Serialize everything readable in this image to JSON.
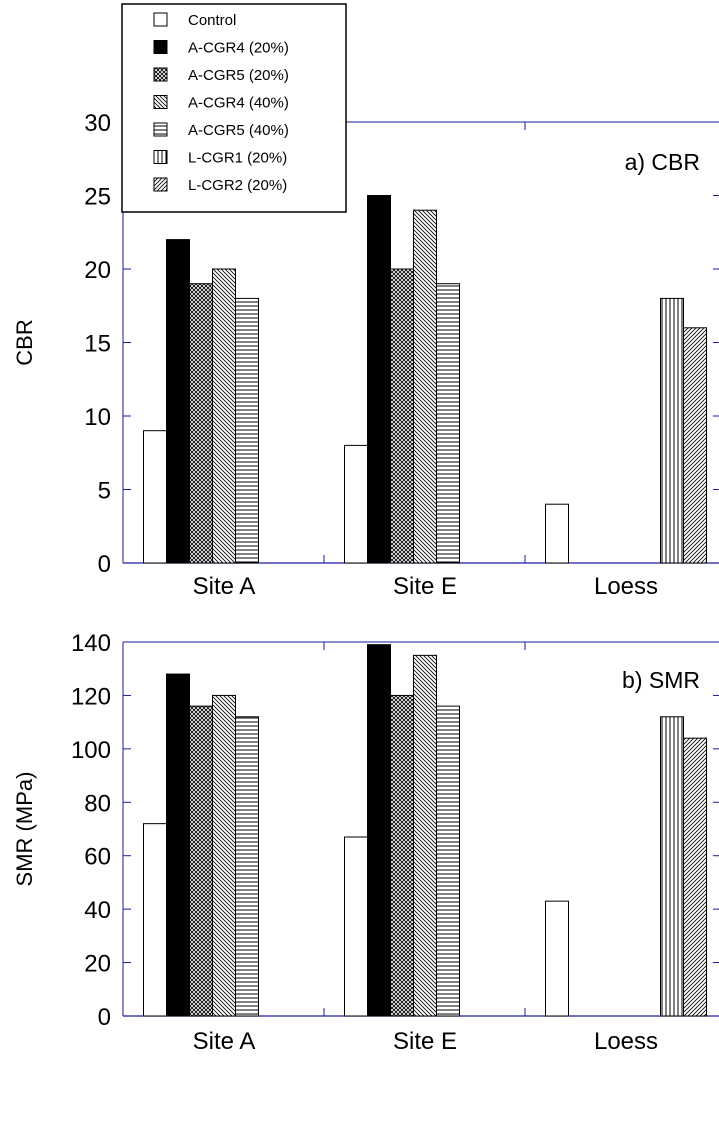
{
  "chart_data": [
    {
      "type": "bar",
      "title": "a) CBR",
      "ylabel": "CBR",
      "xlabel": "",
      "categories": [
        "Site A",
        "Site E",
        "Loess"
      ],
      "ylim": [
        0,
        30
      ],
      "yticks": [
        0,
        5,
        10,
        15,
        20,
        25,
        30
      ],
      "series": [
        {
          "name": "Control",
          "values": [
            9,
            8,
            4
          ]
        },
        {
          "name": "A-CGR4 (20%)",
          "values": [
            22,
            25,
            null
          ]
        },
        {
          "name": "A-CGR5 (20%)",
          "values": [
            19,
            20,
            null
          ]
        },
        {
          "name": "A-CGR4 (40%)",
          "values": [
            20,
            24,
            null
          ]
        },
        {
          "name": "A-CGR5 (40%)",
          "values": [
            18,
            19,
            null
          ]
        },
        {
          "name": "L-CGR1 (20%)",
          "values": [
            null,
            null,
            18
          ]
        },
        {
          "name": "L-CGR2 (20%)",
          "values": [
            null,
            null,
            16
          ]
        }
      ],
      "legend": "top-left",
      "grid": false
    },
    {
      "type": "bar",
      "title": "b) SMR",
      "ylabel": "SMR (MPa)",
      "xlabel": "",
      "categories": [
        "Site A",
        "Site E",
        "Loess"
      ],
      "ylim": [
        0,
        140
      ],
      "yticks": [
        0,
        20,
        40,
        60,
        80,
        100,
        120,
        140
      ],
      "series": [
        {
          "name": "Control",
          "values": [
            72,
            67,
            43
          ]
        },
        {
          "name": "A-CGR4 (20%)",
          "values": [
            128,
            139,
            null
          ]
        },
        {
          "name": "A-CGR5 (20%)",
          "values": [
            116,
            120,
            null
          ]
        },
        {
          "name": "A-CGR4 (40%)",
          "values": [
            120,
            135,
            null
          ]
        },
        {
          "name": "A-CGR5 (40%)",
          "values": [
            112,
            116,
            null
          ]
        },
        {
          "name": "L-CGR1 (20%)",
          "values": [
            null,
            null,
            112
          ]
        },
        {
          "name": "L-CGR2 (20%)",
          "values": [
            null,
            null,
            104
          ]
        }
      ],
      "grid": false
    }
  ],
  "colors": {
    "axis": "#1a1aa0",
    "bar_stroke": "#000000",
    "solid_fill": "#000000"
  }
}
